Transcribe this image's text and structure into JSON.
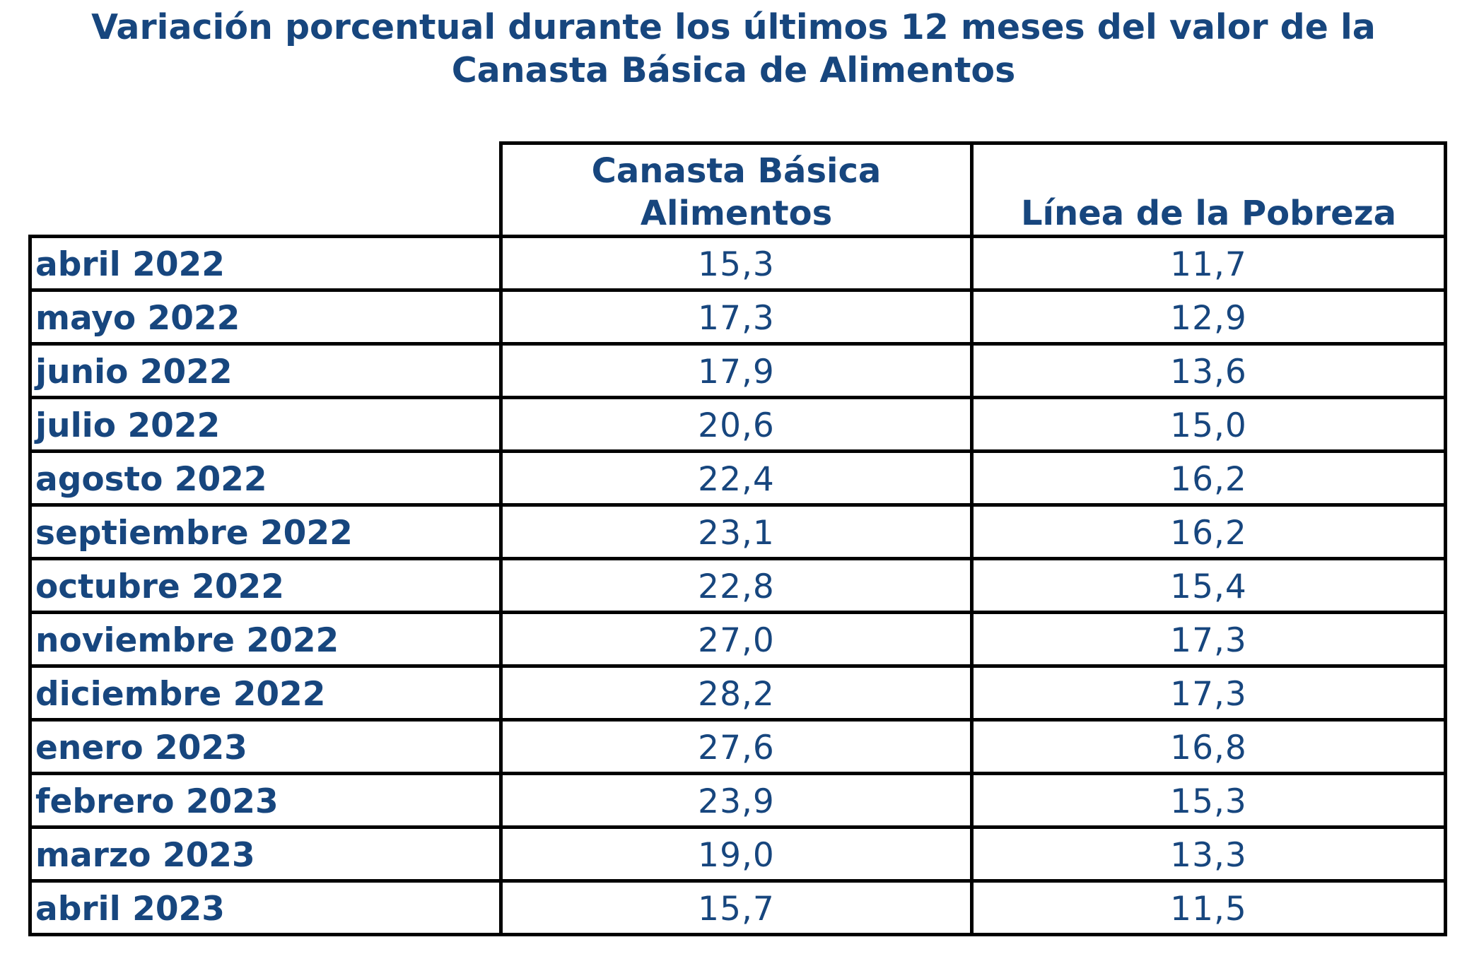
{
  "title": {
    "line1": "Variación porcentual durante los últimos 12 meses del valor de la",
    "line2": "Canasta Básica de Alimentos"
  },
  "table": {
    "headers": {
      "col1_line1": "Canasta Básica",
      "col1_line2": "Alimentos",
      "col2": "Línea de la Pobreza"
    },
    "rows": [
      {
        "month": "abril 2022",
        "cba": "15,3",
        "lp": "11,7"
      },
      {
        "month": "mayo 2022",
        "cba": "17,3",
        "lp": "12,9"
      },
      {
        "month": "junio 2022",
        "cba": "17,9",
        "lp": "13,6"
      },
      {
        "month": "julio 2022",
        "cba": "20,6",
        "lp": "15,0"
      },
      {
        "month": "agosto 2022",
        "cba": "22,4",
        "lp": "16,2"
      },
      {
        "month": "septiembre 2022",
        "cba": "23,1",
        "lp": "16,2"
      },
      {
        "month": "octubre 2022",
        "cba": "22,8",
        "lp": "15,4"
      },
      {
        "month": "noviembre 2022",
        "cba": "27,0",
        "lp": "17,3"
      },
      {
        "month": "diciembre 2022",
        "cba": "28,2",
        "lp": "17,3"
      },
      {
        "month": "enero 2023",
        "cba": "27,6",
        "lp": "16,8"
      },
      {
        "month": "febrero 2023",
        "cba": "23,9",
        "lp": "15,3"
      },
      {
        "month": "marzo 2023",
        "cba": "19,0",
        "lp": "13,3"
      },
      {
        "month": "abril 2023",
        "cba": "15,7",
        "lp": "11,5"
      }
    ]
  },
  "colors": {
    "text": "#17467e",
    "border": "#000000",
    "background": "#ffffff"
  }
}
